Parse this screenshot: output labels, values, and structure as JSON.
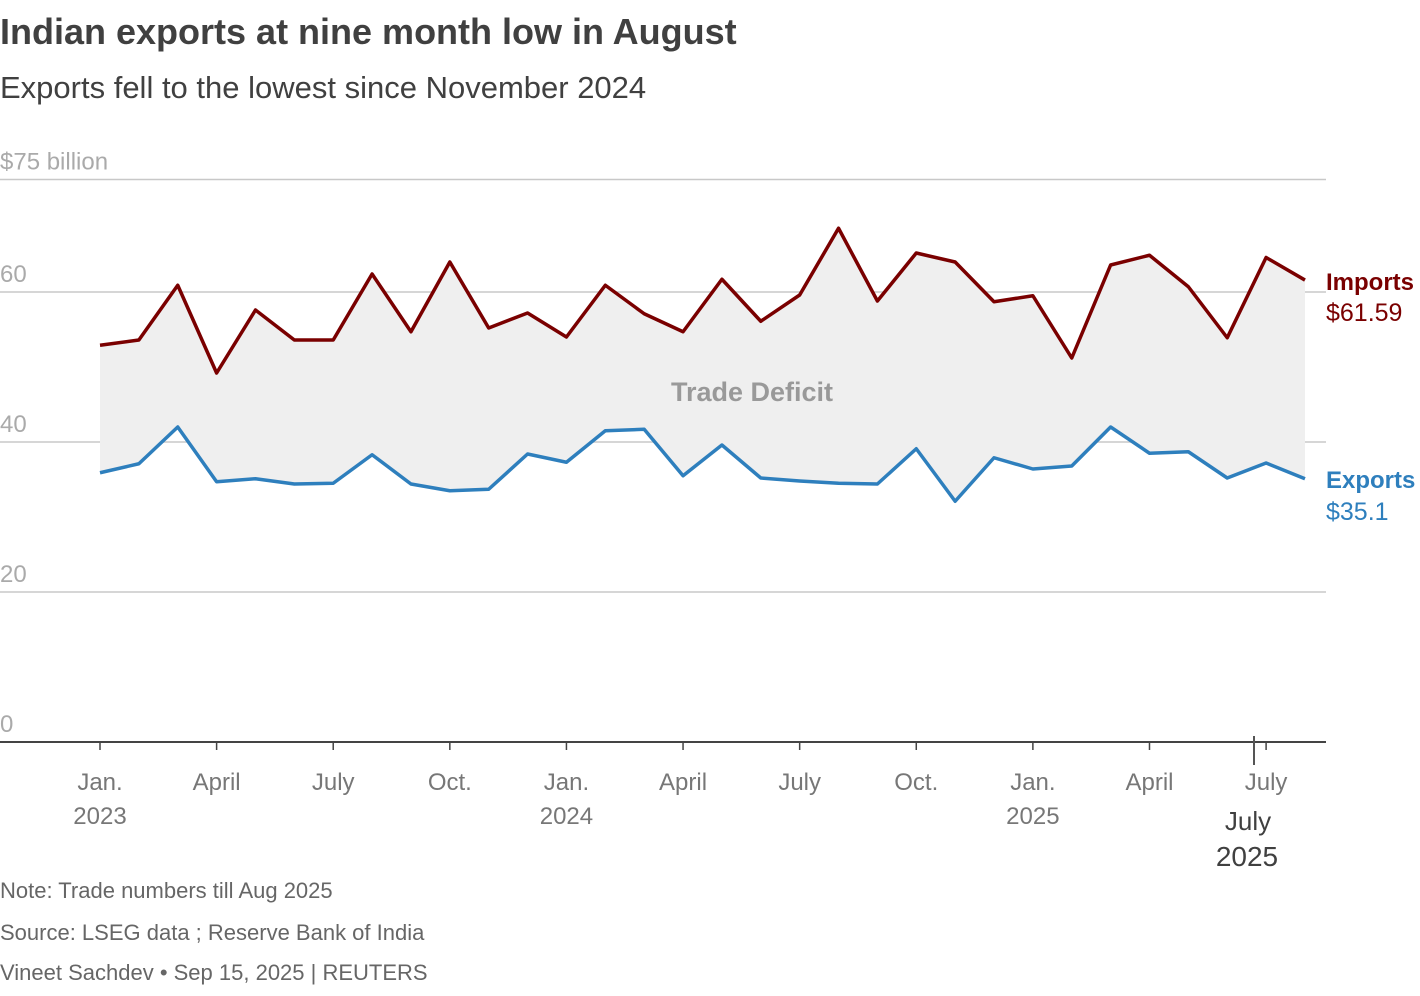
{
  "chart_data": {
    "type": "line",
    "title": "Indian exports at nine month low in August",
    "subtitle": "Exports fell to the lowest since November 2024",
    "ylabel": "$75 billion",
    "ylim": [
      0,
      75
    ],
    "yticks": [
      {
        "v": 0,
        "label": "0"
      },
      {
        "v": 20,
        "label": "20"
      },
      {
        "v": 40,
        "label": "40"
      },
      {
        "v": 60,
        "label": "60"
      },
      {
        "v": 75,
        "label": "$75 billion"
      }
    ],
    "grid": true,
    "x": [
      "2023-01",
      "2023-02",
      "2023-03",
      "2023-04",
      "2023-05",
      "2023-06",
      "2023-07",
      "2023-08",
      "2023-09",
      "2023-10",
      "2023-11",
      "2023-12",
      "2024-01",
      "2024-02",
      "2024-03",
      "2024-04",
      "2024-05",
      "2024-06",
      "2024-07",
      "2024-08",
      "2024-09",
      "2024-10",
      "2024-11",
      "2024-12",
      "2025-01",
      "2025-02",
      "2025-03",
      "2025-04",
      "2025-05",
      "2025-06",
      "2025-07",
      "2025-08"
    ],
    "xticks": [
      {
        "m": 0,
        "label": "Jan.",
        "year": "2023"
      },
      {
        "m": 3,
        "label": "April"
      },
      {
        "m": 6,
        "label": "July"
      },
      {
        "m": 9,
        "label": "Oct."
      },
      {
        "m": 12,
        "label": "Jan.",
        "year": "2024"
      },
      {
        "m": 15,
        "label": "April"
      },
      {
        "m": 18,
        "label": "July"
      },
      {
        "m": 21,
        "label": "Oct."
      },
      {
        "m": 24,
        "label": "Jan.",
        "year": "2025"
      },
      {
        "m": 27,
        "label": "April"
      },
      {
        "m": 30,
        "label": "July"
      }
    ],
    "series": [
      {
        "name": "Imports",
        "color": "#7a0000",
        "end_label": "$61.59",
        "values": [
          52.9,
          53.6,
          60.9,
          49.2,
          57.6,
          53.6,
          53.6,
          62.4,
          54.7,
          64.0,
          55.2,
          57.2,
          54.0,
          60.9,
          57.1,
          54.7,
          61.7,
          56.1,
          59.6,
          68.5,
          58.8,
          65.2,
          64.0,
          58.7,
          59.5,
          51.2,
          63.6,
          64.9,
          60.7,
          53.9,
          64.6,
          61.59
        ]
      },
      {
        "name": "Exports",
        "color": "#2e7fbd",
        "end_label": "$35.1",
        "values": [
          35.9,
          37.1,
          42.0,
          34.7,
          35.1,
          34.4,
          34.5,
          38.3,
          34.4,
          33.5,
          33.7,
          38.4,
          37.3,
          41.5,
          41.7,
          35.5,
          39.6,
          35.2,
          34.8,
          34.5,
          34.4,
          39.1,
          32.1,
          37.9,
          36.4,
          36.8,
          42.0,
          38.5,
          38.7,
          35.2,
          37.2,
          35.1
        ]
      }
    ],
    "area_label": "Trade Deficit",
    "hover": {
      "label": "July",
      "year": "2025"
    }
  },
  "footer": {
    "note": "Note: Trade numbers till Aug 2025",
    "source": "Source: LSEG data ; Reserve Bank of India",
    "credit": "Vineet Sachdev • Sep 15, 2025 | REUTERS"
  }
}
